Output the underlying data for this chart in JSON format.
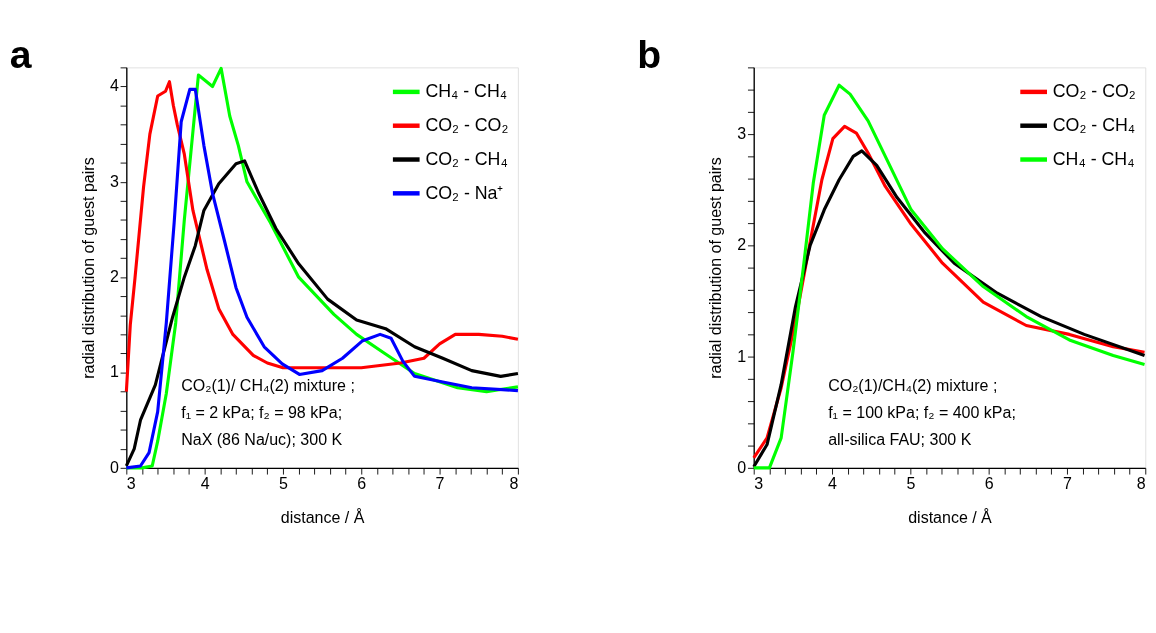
{
  "chart_data": [
    {
      "type": "line",
      "title": "a",
      "xlabel": "distance / Å",
      "ylabel": "radial distribution of guest pairs",
      "xlim": [
        3,
        8
      ],
      "ylim": [
        0,
        4.2
      ],
      "xticks": [
        3,
        {
          "value": 3.2,
          "label": null
        },
        {
          "value": 3.4,
          "label": null
        },
        {
          "value": 3.6,
          "label": null
        },
        {
          "value": 3.8,
          "label": null
        },
        4,
        {
          "value": 4.2,
          "label": null
        },
        {
          "value": 4.4,
          "label": null
        },
        {
          "value": 4.6,
          "label": null
        },
        {
          "value": 4.8,
          "label": null
        },
        5,
        {
          "value": 5.2,
          "label": null
        },
        {
          "value": 5.4,
          "label": null
        },
        {
          "value": 5.6,
          "label": null
        },
        {
          "value": 5.8,
          "label": null
        },
        6,
        {
          "value": 6.2,
          "label": null
        },
        {
          "value": 6.4,
          "label": null
        },
        {
          "value": 6.6,
          "label": null
        },
        {
          "value": 6.8,
          "label": null
        },
        7,
        {
          "value": 7.2,
          "label": null
        },
        {
          "value": 7.4,
          "label": null
        },
        {
          "value": 7.6,
          "label": null
        },
        {
          "value": 7.8,
          "label": null
        },
        8
      ],
      "yticks": [
        0,
        {
          "value": 0.2,
          "label": null
        },
        {
          "value": 0.4,
          "label": null
        },
        {
          "value": 0.6,
          "label": null
        },
        {
          "value": 0.8,
          "label": null
        },
        1,
        {
          "value": 1.2,
          "label": null
        },
        {
          "value": 1.4,
          "label": null
        },
        {
          "value": 1.6,
          "label": null
        },
        {
          "value": 1.8,
          "label": null
        },
        2,
        {
          "value": 2.2,
          "label": null
        },
        {
          "value": 2.4,
          "label": null
        },
        {
          "value": 2.6,
          "label": null
        },
        {
          "value": 2.8,
          "label": null
        },
        3,
        {
          "value": 3.2,
          "label": null
        },
        {
          "value": 3.4,
          "label": null
        },
        {
          "value": 3.6,
          "label": null
        },
        {
          "value": 3.8,
          "label": null
        },
        4,
        {
          "value": 4.2,
          "label": null
        }
      ],
      "grid": false,
      "legend": "top right",
      "marker": "none",
      "line_style": "solid",
      "annotations": [
        "CO₂(1)/ CH₄(2) mixture ;\nf₁ = 2 kPa; f₂ = 98 kPa;\nNaX (86 Na/uc); 300 K"
      ],
      "series": [
        {
          "name": "CH₄ - CH₄",
          "color": "#00ff00",
          "x": [
            3.0,
            3.2,
            3.33,
            3.4,
            3.51,
            3.63,
            3.74,
            3.85,
            3.92,
            4.1,
            4.21,
            4.32,
            4.43,
            4.54,
            4.84,
            5.2,
            5.65,
            5.94,
            6.3,
            6.68,
            7.23,
            7.6,
            8.0
          ],
          "values": [
            0,
            0,
            0.02,
            0.28,
            0.78,
            1.52,
            2.6,
            3.53,
            4.12,
            4.0,
            4.19,
            3.69,
            3.38,
            3.0,
            2.57,
            2.0,
            1.61,
            1.4,
            1.2,
            0.99,
            0.84,
            0.8,
            0.85
          ]
        },
        {
          "name": "CO₂ - CO₂",
          "color": "#ff0000",
          "x": [
            3.0,
            3.05,
            3.11,
            3.22,
            3.3,
            3.4,
            3.5,
            3.55,
            3.6,
            3.65,
            3.74,
            3.85,
            4.03,
            4.18,
            4.36,
            4.62,
            4.8,
            5.0,
            5.5,
            6.0,
            6.5,
            6.8,
            7.0,
            7.2,
            7.5,
            7.8,
            8.0
          ],
          "values": [
            0.8,
            1.5,
            1.99,
            2.95,
            3.5,
            3.9,
            3.95,
            4.05,
            3.8,
            3.6,
            3.29,
            2.7,
            2.08,
            1.67,
            1.4,
            1.18,
            1.1,
            1.05,
            1.05,
            1.05,
            1.1,
            1.15,
            1.3,
            1.4,
            1.4,
            1.38,
            1.35
          ]
        },
        {
          "name": "CO₂ - CH₄",
          "color": "#000000",
          "x": [
            3.0,
            3.1,
            3.18,
            3.37,
            3.59,
            3.74,
            3.88,
            3.99,
            4.18,
            4.4,
            4.51,
            4.69,
            4.91,
            5.2,
            5.57,
            5.94,
            6.31,
            6.68,
            7.04,
            7.41,
            7.78,
            8.0
          ],
          "values": [
            0.02,
            0.2,
            0.5,
            0.87,
            1.58,
            2.0,
            2.33,
            2.7,
            2.98,
            3.19,
            3.22,
            2.88,
            2.51,
            2.14,
            1.77,
            1.55,
            1.46,
            1.27,
            1.15,
            1.02,
            0.96,
            0.99
          ]
        },
        {
          "name": "CO₂ - Na⁺",
          "color": "#0000ff",
          "x": [
            3.0,
            3.18,
            3.29,
            3.4,
            3.51,
            3.61,
            3.7,
            3.81,
            3.88,
            3.99,
            4.1,
            4.25,
            4.4,
            4.54,
            4.76,
            4.99,
            5.21,
            5.5,
            5.76,
            6.01,
            6.24,
            6.38,
            6.53,
            6.68,
            7.04,
            7.41,
            8.0
          ],
          "values": [
            0,
            0.02,
            0.16,
            0.59,
            1.52,
            2.57,
            3.63,
            3.97,
            3.97,
            3.38,
            2.88,
            2.39,
            1.89,
            1.58,
            1.27,
            1.09,
            0.98,
            1.02,
            1.15,
            1.33,
            1.4,
            1.36,
            1.12,
            0.96,
            0.9,
            0.84,
            0.81
          ]
        }
      ]
    },
    {
      "type": "line",
      "title": "b",
      "xlabel": "distance / Å",
      "ylabel": "radial distribution of guest pairs",
      "xlim": [
        3,
        8
      ],
      "ylim": [
        0,
        3.6
      ],
      "xticks": [
        3,
        {
          "value": 3.2,
          "label": null
        },
        {
          "value": 3.4,
          "label": null
        },
        {
          "value": 3.6,
          "label": null
        },
        {
          "value": 3.8,
          "label": null
        },
        4,
        {
          "value": 4.2,
          "label": null
        },
        {
          "value": 4.4,
          "label": null
        },
        {
          "value": 4.6,
          "label": null
        },
        {
          "value": 4.8,
          "label": null
        },
        5,
        {
          "value": 5.2,
          "label": null
        },
        {
          "value": 5.4,
          "label": null
        },
        {
          "value": 5.6,
          "label": null
        },
        {
          "value": 5.8,
          "label": null
        },
        6,
        {
          "value": 6.2,
          "label": null
        },
        {
          "value": 6.4,
          "label": null
        },
        {
          "value": 6.6,
          "label": null
        },
        {
          "value": 6.8,
          "label": null
        },
        7,
        {
          "value": 7.2,
          "label": null
        },
        {
          "value": 7.4,
          "label": null
        },
        {
          "value": 7.6,
          "label": null
        },
        {
          "value": 7.8,
          "label": null
        },
        8
      ],
      "yticks": [
        0,
        {
          "value": 0.2,
          "label": null
        },
        {
          "value": 0.4,
          "label": null
        },
        {
          "value": 0.6,
          "label": null
        },
        {
          "value": 0.8,
          "label": null
        },
        1,
        {
          "value": 1.2,
          "label": null
        },
        {
          "value": 1.4,
          "label": null
        },
        {
          "value": 1.6,
          "label": null
        },
        {
          "value": 1.8,
          "label": null
        },
        2,
        {
          "value": 2.2,
          "label": null
        },
        {
          "value": 2.4,
          "label": null
        },
        {
          "value": 2.6,
          "label": null
        },
        {
          "value": 2.8,
          "label": null
        },
        3,
        {
          "value": 3.2,
          "label": null
        },
        {
          "value": 3.4,
          "label": null
        },
        {
          "value": 3.6,
          "label": null
        }
      ],
      "grid": false,
      "legend": "top right",
      "marker": "none",
      "line_style": "solid",
      "annotations": [
        "CO₂(1)/CH₄(2) mixture ;\nf₁ = 100 kPa; f₂ = 400 kPa;\nall-silica FAU; 300 K"
      ],
      "series": [
        {
          "name": "CO₂ - CO₂",
          "color": "#ff0000",
          "x": [
            3.0,
            3.17,
            3.35,
            3.53,
            3.72,
            3.87,
            4.01,
            4.16,
            4.31,
            4.46,
            4.68,
            5.01,
            5.41,
            5.93,
            6.48,
            7.03,
            7.59,
            7.99
          ],
          "values": [
            0.09,
            0.27,
            0.72,
            1.31,
            2.03,
            2.59,
            2.96,
            3.07,
            3.01,
            2.83,
            2.53,
            2.19,
            1.84,
            1.49,
            1.28,
            1.2,
            1.09,
            1.04
          ]
        },
        {
          "name": "CO₂ - CH₄",
          "color": "#000000",
          "x": [
            3.0,
            3.17,
            3.35,
            3.53,
            3.72,
            3.9,
            4.09,
            4.27,
            4.38,
            4.57,
            4.83,
            5.19,
            5.56,
            6.11,
            6.67,
            7.22,
            7.99
          ],
          "values": [
            0.01,
            0.21,
            0.75,
            1.44,
            2.0,
            2.32,
            2.59,
            2.8,
            2.85,
            2.72,
            2.43,
            2.11,
            1.84,
            1.57,
            1.36,
            1.2,
            1.01
          ]
        },
        {
          "name": "CH₄ - CH₄",
          "color": "#00ff00",
          "x": [
            3.0,
            3.2,
            3.35,
            3.5,
            3.64,
            3.76,
            3.9,
            4.09,
            4.23,
            4.46,
            4.68,
            5.01,
            5.41,
            5.93,
            6.48,
            7.03,
            7.59,
            7.99
          ],
          "values": [
            0,
            0,
            0.27,
            1.04,
            1.84,
            2.56,
            3.17,
            3.44,
            3.36,
            3.12,
            2.8,
            2.32,
            1.97,
            1.63,
            1.36,
            1.15,
            1.01,
            0.93
          ]
        }
      ]
    }
  ]
}
